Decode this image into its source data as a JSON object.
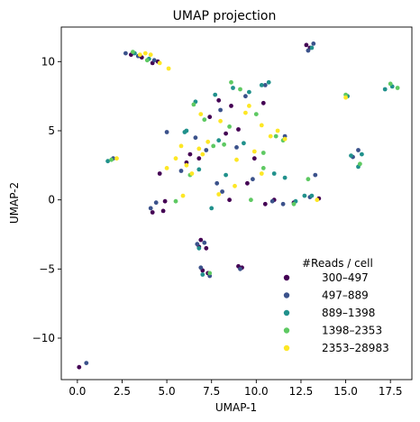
{
  "chart_data": {
    "type": "scatter",
    "title": "UMAP projection",
    "xlabel": "UMAP-1",
    "ylabel": "UMAP-2",
    "xlim": [
      -0.9,
      18.7
    ],
    "ylim": [
      -13.0,
      12.5
    ],
    "xticks": [
      0.0,
      2.5,
      5.0,
      7.5,
      10.0,
      12.5,
      15.0,
      17.5
    ],
    "xtick_labels": [
      "0.0",
      "2.5",
      "5.0",
      "7.5",
      "10.0",
      "12.5",
      "15.0",
      "17.5"
    ],
    "yticks": [
      10,
      5,
      0,
      -5,
      -10
    ],
    "ytick_labels": [
      "10",
      "5",
      "0",
      "−5",
      "−10"
    ],
    "grid": false,
    "legend": {
      "title": "#Reads / cell",
      "position": "lower-right"
    },
    "series": [
      {
        "name": "300–497",
        "color": "#440154",
        "points": [
          [
            3.0,
            10.5
          ],
          [
            3.6,
            10.3
          ],
          [
            4.5,
            10.0
          ],
          [
            4.2,
            9.9
          ],
          [
            12.8,
            11.2
          ],
          [
            13.0,
            11.0
          ],
          [
            8.3,
            4.8
          ],
          [
            9.0,
            5.1
          ],
          [
            7.4,
            6.0
          ],
          [
            7.9,
            7.2
          ],
          [
            6.8,
            3.0
          ],
          [
            6.1,
            2.7
          ],
          [
            4.6,
            1.9
          ],
          [
            4.9,
            -0.1
          ],
          [
            4.2,
            -0.9
          ],
          [
            4.8,
            -0.8
          ],
          [
            6.9,
            -2.9
          ],
          [
            7.2,
            -3.5
          ],
          [
            6.8,
            -3.4
          ],
          [
            7.0,
            -5.1
          ],
          [
            7.3,
            -5.3
          ],
          [
            9.0,
            -4.8
          ],
          [
            9.2,
            -4.9
          ],
          [
            8.5,
            0.0
          ],
          [
            9.5,
            1.2
          ],
          [
            11.0,
            0.0
          ],
          [
            12.1,
            -0.2
          ],
          [
            9.9,
            3.0
          ],
          [
            10.4,
            7.0
          ],
          [
            8.6,
            6.8
          ],
          [
            6.3,
            3.3
          ],
          [
            0.1,
            -12.1
          ],
          [
            13.5,
            0.1
          ],
          [
            10.5,
            -0.3
          ]
        ]
      },
      {
        "name": "497–889",
        "color": "#3b528b",
        "points": [
          [
            2.7,
            10.6
          ],
          [
            3.4,
            10.4
          ],
          [
            4.3,
            10.1
          ],
          [
            13.2,
            11.3
          ],
          [
            12.9,
            10.8
          ],
          [
            9.4,
            7.5
          ],
          [
            8.0,
            6.5
          ],
          [
            5.0,
            4.9
          ],
          [
            6.6,
            4.5
          ],
          [
            7.2,
            3.6
          ],
          [
            8.9,
            3.8
          ],
          [
            4.4,
            -0.2
          ],
          [
            4.1,
            -0.6
          ],
          [
            6.7,
            -3.2
          ],
          [
            7.1,
            -3.1
          ],
          [
            6.9,
            -4.9
          ],
          [
            7.4,
            -5.5
          ],
          [
            9.1,
            -5.0
          ],
          [
            10.9,
            -0.1
          ],
          [
            11.5,
            -0.3
          ],
          [
            13.0,
            0.2
          ],
          [
            13.3,
            1.8
          ],
          [
            11.6,
            4.6
          ],
          [
            10.5,
            8.3
          ],
          [
            15.4,
            3.1
          ],
          [
            15.7,
            3.6
          ],
          [
            9.8,
            1.5
          ],
          [
            2.0,
            3.0
          ],
          [
            0.5,
            -11.8
          ],
          [
            7.8,
            1.2
          ],
          [
            8.1,
            0.6
          ],
          [
            5.8,
            2.1
          ]
        ]
      },
      {
        "name": "889–1398",
        "color": "#21918c",
        "points": [
          [
            3.2,
            10.6
          ],
          [
            4.0,
            10.2
          ],
          [
            9.6,
            7.8
          ],
          [
            8.7,
            8.1
          ],
          [
            7.7,
            7.6
          ],
          [
            6.1,
            5.0
          ],
          [
            7.9,
            4.3
          ],
          [
            9.3,
            4.1
          ],
          [
            6.8,
            2.2
          ],
          [
            8.3,
            1.8
          ],
          [
            11.0,
            1.9
          ],
          [
            11.6,
            1.6
          ],
          [
            12.7,
            0.3
          ],
          [
            13.1,
            0.3
          ],
          [
            15.1,
            7.5
          ],
          [
            15.3,
            3.2
          ],
          [
            15.9,
            3.3
          ],
          [
            15.7,
            2.4
          ],
          [
            17.6,
            8.2
          ],
          [
            17.2,
            8.0
          ],
          [
            10.3,
            8.3
          ],
          [
            10.7,
            8.5
          ],
          [
            6.6,
            7.1
          ],
          [
            6.0,
            4.9
          ],
          [
            7.0,
            -5.4
          ],
          [
            6.8,
            -3.5
          ],
          [
            1.7,
            2.8
          ],
          [
            13.1,
            11.0
          ],
          [
            12.2,
            -0.1
          ],
          [
            7.5,
            -0.6
          ]
        ]
      },
      {
        "name": "1398–2353",
        "color": "#5ec962",
        "points": [
          [
            3.1,
            10.7
          ],
          [
            3.9,
            10.1
          ],
          [
            8.6,
            8.5
          ],
          [
            9.1,
            8.0
          ],
          [
            10.0,
            6.2
          ],
          [
            8.5,
            5.3
          ],
          [
            7.1,
            5.8
          ],
          [
            7.6,
            3.9
          ],
          [
            10.4,
            3.4
          ],
          [
            6.3,
            1.8
          ],
          [
            5.5,
            -0.1
          ],
          [
            15.0,
            7.6
          ],
          [
            15.8,
            2.6
          ],
          [
            17.5,
            8.4
          ],
          [
            17.9,
            8.1
          ],
          [
            11.1,
            4.6
          ],
          [
            11.5,
            4.3
          ],
          [
            12.9,
            1.5
          ],
          [
            12.1,
            -0.3
          ],
          [
            1.9,
            2.9
          ],
          [
            7.4,
            -5.3
          ],
          [
            10.4,
            2.3
          ],
          [
            8.2,
            4.0
          ],
          [
            9.7,
            0.0
          ],
          [
            6.5,
            6.9
          ]
        ]
      },
      {
        "name": "2353–28983",
        "color": "#fde725",
        "points": [
          [
            3.5,
            10.5
          ],
          [
            4.1,
            10.5
          ],
          [
            5.1,
            9.5
          ],
          [
            4.6,
            9.9
          ],
          [
            3.8,
            10.6
          ],
          [
            9.4,
            6.3
          ],
          [
            10.3,
            5.4
          ],
          [
            10.8,
            4.6
          ],
          [
            11.2,
            5.0
          ],
          [
            8.0,
            5.7
          ],
          [
            7.3,
            4.2
          ],
          [
            6.8,
            3.7
          ],
          [
            5.5,
            3.0
          ],
          [
            5.0,
            2.3
          ],
          [
            6.4,
            1.9
          ],
          [
            6.1,
            2.5
          ],
          [
            5.8,
            3.9
          ],
          [
            7.0,
            3.3
          ],
          [
            8.9,
            2.9
          ],
          [
            10.3,
            1.9
          ],
          [
            9.9,
            3.5
          ],
          [
            7.9,
            0.4
          ],
          [
            5.9,
            0.3
          ],
          [
            2.2,
            3.0
          ],
          [
            15.0,
            7.4
          ],
          [
            13.4,
            0.0
          ],
          [
            11.6,
            4.4
          ],
          [
            8.8,
            1.0
          ],
          [
            6.9,
            6.2
          ],
          [
            9.6,
            6.8
          ]
        ]
      }
    ]
  }
}
